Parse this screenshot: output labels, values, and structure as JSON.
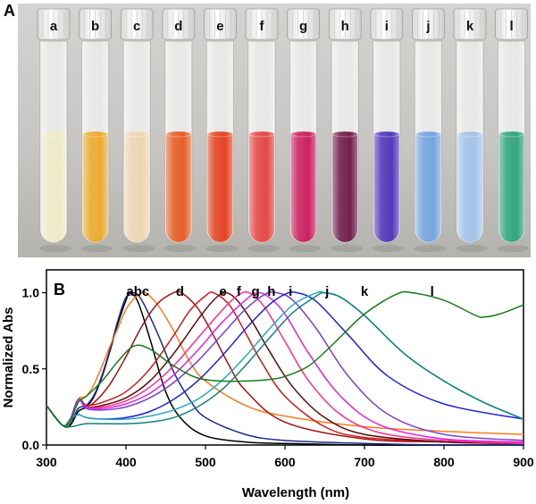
{
  "panel_a": {
    "letter": "A",
    "tubes": [
      {
        "label": "a",
        "color": "#ece9c4"
      },
      {
        "label": "b",
        "color": "#e8a624"
      },
      {
        "label": "c",
        "color": "#ead3ae"
      },
      {
        "label": "d",
        "color": "#e3561e"
      },
      {
        "label": "e",
        "color": "#e23b18"
      },
      {
        "label": "f",
        "color": "#e2403d"
      },
      {
        "label": "g",
        "color": "#c81657"
      },
      {
        "label": "h",
        "color": "#6a1343"
      },
      {
        "label": "i",
        "color": "#4a2fb6"
      },
      {
        "label": "j",
        "color": "#6d9fdc"
      },
      {
        "label": "k",
        "color": "#9ec0e8"
      },
      {
        "label": "l",
        "color": "#2aa07a"
      }
    ]
  },
  "chart_data": {
    "panel_letter": "B",
    "type": "line",
    "xlabel": "Wavelength (nm)",
    "ylabel": "Normalized Abs",
    "xlim": [
      300,
      900
    ],
    "ylim": [
      0,
      1.15
    ],
    "xticks": [
      "300",
      "400",
      "500",
      "600",
      "700",
      "800",
      "900"
    ],
    "yticks": [
      "0.0",
      "0.5",
      "1.0"
    ],
    "grid": false,
    "legend": "none",
    "curve_labels": [
      {
        "text": "abc",
        "x": 415
      },
      {
        "text": "d",
        "x": 468
      },
      {
        "text": "e",
        "x": 522
      },
      {
        "text": "f",
        "x": 542
      },
      {
        "text": "g",
        "x": 563
      },
      {
        "text": "h",
        "x": 583
      },
      {
        "text": "i",
        "x": 607
      },
      {
        "text": "j",
        "x": 653
      },
      {
        "text": "k",
        "x": 700
      },
      {
        "text": "l",
        "x": 785
      }
    ],
    "series": [
      {
        "color": "#000000",
        "x": [
          300,
          320,
          330,
          340,
          350,
          360,
          370,
          380,
          390,
          400,
          405,
          415,
          430,
          450,
          470,
          500,
          550,
          600,
          700,
          800,
          900
        ],
        "y": [
          0.26,
          0.13,
          0.13,
          0.22,
          0.25,
          0.32,
          0.45,
          0.62,
          0.8,
          0.95,
          1.0,
          0.94,
          0.7,
          0.35,
          0.17,
          0.06,
          0.02,
          0.01,
          0.0,
          0.0,
          0.0
        ]
      },
      {
        "color": "#1c2a8c",
        "x": [
          300,
          320,
          330,
          340,
          350,
          360,
          370,
          380,
          390,
          400,
          410,
          420,
          440,
          460,
          480,
          500,
          550,
          600,
          700,
          800,
          900
        ],
        "y": [
          0.26,
          0.13,
          0.14,
          0.24,
          0.26,
          0.33,
          0.46,
          0.63,
          0.82,
          0.97,
          1.0,
          0.95,
          0.73,
          0.48,
          0.3,
          0.18,
          0.07,
          0.03,
          0.01,
          0.0,
          0.0
        ]
      },
      {
        "color": "#ff7a1a",
        "x": [
          300,
          320,
          330,
          340,
          350,
          360,
          370,
          380,
          390,
          400,
          410,
          420,
          425,
          440,
          460,
          480,
          500,
          550,
          600,
          700,
          800,
          900
        ],
        "y": [
          0.26,
          0.13,
          0.15,
          0.3,
          0.32,
          0.4,
          0.52,
          0.65,
          0.77,
          0.89,
          0.96,
          1.0,
          1.0,
          0.92,
          0.75,
          0.55,
          0.42,
          0.26,
          0.19,
          0.12,
          0.09,
          0.07
        ]
      },
      {
        "color": "#a01010",
        "x": [
          300,
          320,
          330,
          340,
          350,
          360,
          380,
          400,
          420,
          440,
          460,
          470,
          490,
          510,
          530,
          550,
          600,
          700,
          800,
          900
        ],
        "y": [
          0.26,
          0.13,
          0.16,
          0.3,
          0.26,
          0.28,
          0.4,
          0.58,
          0.78,
          0.93,
          1.0,
          1.0,
          0.9,
          0.72,
          0.52,
          0.36,
          0.15,
          0.04,
          0.02,
          0.01
        ]
      },
      {
        "color": "#cc1a1a",
        "x": [
          300,
          320,
          330,
          340,
          350,
          370,
          400,
          430,
          460,
          480,
          500,
          510,
          530,
          550,
          570,
          600,
          650,
          700,
          800,
          900
        ],
        "y": [
          0.26,
          0.13,
          0.17,
          0.3,
          0.26,
          0.28,
          0.35,
          0.5,
          0.72,
          0.88,
          0.98,
          1.0,
          0.92,
          0.74,
          0.55,
          0.32,
          0.12,
          0.05,
          0.02,
          0.01
        ]
      },
      {
        "color": "#5a0a0a",
        "x": [
          300,
          320,
          330,
          340,
          350,
          370,
          400,
          430,
          460,
          490,
          510,
          525,
          540,
          560,
          580,
          610,
          650,
          700,
          800,
          900
        ],
        "y": [
          0.26,
          0.13,
          0.17,
          0.3,
          0.25,
          0.26,
          0.31,
          0.42,
          0.6,
          0.82,
          0.95,
          1.0,
          0.95,
          0.8,
          0.62,
          0.38,
          0.18,
          0.07,
          0.02,
          0.01
        ]
      },
      {
        "color": "#ff2e8a",
        "x": [
          300,
          320,
          330,
          340,
          350,
          370,
          400,
          430,
          460,
          490,
          520,
          540,
          555,
          575,
          600,
          630,
          670,
          720,
          800,
          900
        ],
        "y": [
          0.26,
          0.13,
          0.17,
          0.3,
          0.25,
          0.25,
          0.29,
          0.38,
          0.52,
          0.7,
          0.88,
          0.98,
          1.0,
          0.9,
          0.68,
          0.42,
          0.2,
          0.08,
          0.03,
          0.01
        ]
      },
      {
        "color": "#e020e0",
        "x": [
          300,
          320,
          330,
          340,
          350,
          370,
          400,
          430,
          460,
          490,
          520,
          550,
          565,
          580,
          600,
          630,
          670,
          720,
          800,
          900
        ],
        "y": [
          0.26,
          0.13,
          0.17,
          0.3,
          0.25,
          0.24,
          0.27,
          0.34,
          0.46,
          0.62,
          0.8,
          0.95,
          1.0,
          0.97,
          0.86,
          0.6,
          0.32,
          0.13,
          0.04,
          0.02
        ]
      },
      {
        "color": "#7a3fd0",
        "x": [
          300,
          320,
          330,
          340,
          350,
          370,
          400,
          430,
          460,
          490,
          520,
          550,
          575,
          590,
          610,
          640,
          680,
          730,
          800,
          900
        ],
        "y": [
          0.26,
          0.13,
          0.17,
          0.3,
          0.24,
          0.23,
          0.25,
          0.31,
          0.41,
          0.55,
          0.72,
          0.89,
          0.99,
          1.0,
          0.95,
          0.76,
          0.45,
          0.2,
          0.07,
          0.03
        ]
      },
      {
        "color": "#2020d8",
        "x": [
          300,
          320,
          330,
          340,
          350,
          370,
          400,
          430,
          460,
          490,
          520,
          550,
          580,
          600,
          615,
          640,
          680,
          730,
          800,
          900
        ],
        "y": [
          0.26,
          0.13,
          0.17,
          0.2,
          0.18,
          0.17,
          0.18,
          0.22,
          0.3,
          0.42,
          0.58,
          0.76,
          0.92,
          0.99,
          1.0,
          0.94,
          0.72,
          0.45,
          0.27,
          0.17
        ]
      },
      {
        "color": "#25a7c4",
        "x": [
          300,
          320,
          330,
          340,
          350,
          370,
          400,
          430,
          460,
          490,
          520,
          550,
          580,
          610,
          640,
          650,
          670,
          700,
          750,
          800,
          850,
          900
        ],
        "y": [
          0.26,
          0.13,
          0.17,
          0.2,
          0.18,
          0.17,
          0.17,
          0.19,
          0.23,
          0.3,
          0.42,
          0.58,
          0.76,
          0.92,
          1.0,
          1.0,
          0.97,
          0.85,
          0.6,
          0.42,
          0.28,
          0.17
        ]
      },
      {
        "color": "#108080",
        "x": [
          300,
          320,
          330,
          340,
          350,
          370,
          400,
          430,
          460,
          490,
          520,
          550,
          580,
          610,
          640,
          650,
          670,
          700,
          750,
          800,
          850,
          900
        ],
        "y": [
          0.26,
          0.13,
          0.12,
          0.13,
          0.14,
          0.14,
          0.14,
          0.15,
          0.18,
          0.25,
          0.36,
          0.52,
          0.7,
          0.87,
          0.98,
          1.0,
          0.97,
          0.85,
          0.6,
          0.42,
          0.28,
          0.17
        ]
      },
      {
        "color": "#1a7a1a",
        "x": [
          300,
          320,
          330,
          340,
          350,
          370,
          390,
          410,
          430,
          460,
          490,
          520,
          550,
          580,
          600,
          630,
          660,
          700,
          740,
          760,
          800,
          840,
          850,
          870,
          900
        ],
        "y": [
          0.26,
          0.13,
          0.16,
          0.28,
          0.32,
          0.42,
          0.55,
          0.65,
          0.63,
          0.52,
          0.44,
          0.42,
          0.42,
          0.43,
          0.45,
          0.52,
          0.66,
          0.86,
          0.99,
          1.0,
          0.95,
          0.85,
          0.84,
          0.86,
          0.92
        ]
      }
    ]
  }
}
